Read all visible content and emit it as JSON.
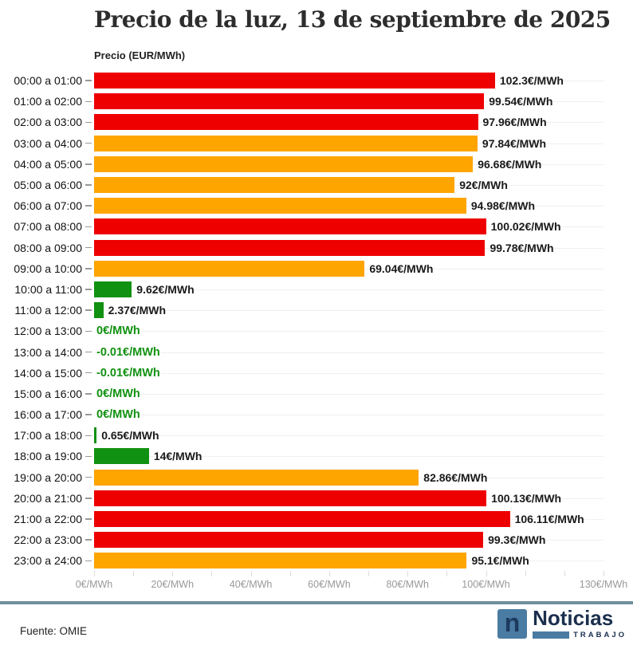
{
  "header": {
    "title": "Precio de la luz, 13 de septiembre de 2025",
    "axis_title": "Precio (EUR/MWh)"
  },
  "footer": {
    "source": "Fuente: OMIE",
    "logo": {
      "letter": "n",
      "name": "Noticias",
      "sub": "TRABAJO"
    }
  },
  "colors": {
    "red": "#ee0000",
    "orange": "#ffa500",
    "green": "#119111",
    "label_dark": "#1a1a1a",
    "label_green": "#119111",
    "grid": "#f0f0f0",
    "axis_text": "#999999",
    "footer_rule": "#6f8f9e",
    "logo_blue": "#4a7ca3",
    "logo_navy": "#1b2f4e"
  },
  "chart_data": {
    "type": "bar",
    "orientation": "horizontal",
    "title": "Precio de la luz, 13 de septiembre de 2025",
    "xlabel": "Precio (EUR/MWh)",
    "ylabel": "",
    "xlim": [
      0,
      130
    ],
    "grid": "horizontal-row-lines",
    "legend": "none",
    "x_tick_values": [
      0,
      20,
      40,
      60,
      80,
      100,
      130
    ],
    "x_tick_labels": [
      "0€/MWh",
      "20€/MWh",
      "40€/MWh",
      "60€/MWh",
      "80€/MWh",
      "100€/MWh",
      "130€/MWh"
    ],
    "minor_tick_step": 10,
    "categories": [
      "00:00 a 01:00",
      "01:00 a 02:00",
      "02:00 a 03:00",
      "03:00 a 04:00",
      "04:00 a 05:00",
      "05:00 a 06:00",
      "06:00 a 07:00",
      "07:00 a 08:00",
      "08:00 a 09:00",
      "09:00 a 10:00",
      "10:00 a 11:00",
      "11:00 a 12:00",
      "12:00 a 13:00",
      "13:00 a 14:00",
      "14:00 a 15:00",
      "15:00 a 16:00",
      "16:00 a 17:00",
      "17:00 a 18:00",
      "18:00 a 19:00",
      "19:00 a 20:00",
      "20:00 a 21:00",
      "21:00 a 22:00",
      "22:00 a 23:00",
      "23:00 a 24:00"
    ],
    "values": [
      102.3,
      99.54,
      97.96,
      97.84,
      96.68,
      92,
      94.98,
      100.02,
      99.78,
      69.04,
      9.62,
      2.37,
      0,
      -0.01,
      -0.01,
      0,
      0,
      0.65,
      14,
      82.86,
      100.13,
      106.11,
      99.3,
      95.1
    ],
    "value_labels": [
      "102.3€/MWh",
      "99.54€/MWh",
      "97.96€/MWh",
      "97.84€/MWh",
      "96.68€/MWh",
      "92€/MWh",
      "94.98€/MWh",
      "100.02€/MWh",
      "99.78€/MWh",
      "69.04€/MWh",
      "9.62€/MWh",
      "2.37€/MWh",
      "0€/MWh",
      "-0.01€/MWh",
      "-0.01€/MWh",
      "0€/MWh",
      "0€/MWh",
      "0.65€/MWh",
      "14€/MWh",
      "82.86€/MWh",
      "100.13€/MWh",
      "106.11€/MWh",
      "99.3€/MWh",
      "95.1€/MWh"
    ],
    "bar_colors": [
      "red",
      "red",
      "red",
      "orange",
      "orange",
      "orange",
      "orange",
      "red",
      "red",
      "orange",
      "green",
      "green",
      "green",
      "green",
      "green",
      "green",
      "green",
      "green",
      "green",
      "orange",
      "red",
      "red",
      "red",
      "orange"
    ],
    "label_styles": [
      "dark",
      "dark",
      "dark",
      "dark",
      "dark",
      "dark",
      "dark",
      "dark",
      "dark",
      "dark",
      "dark",
      "dark",
      "halo",
      "halo",
      "halo",
      "halo",
      "halo",
      "dark",
      "dark",
      "dark",
      "dark",
      "dark",
      "dark",
      "dark"
    ]
  }
}
